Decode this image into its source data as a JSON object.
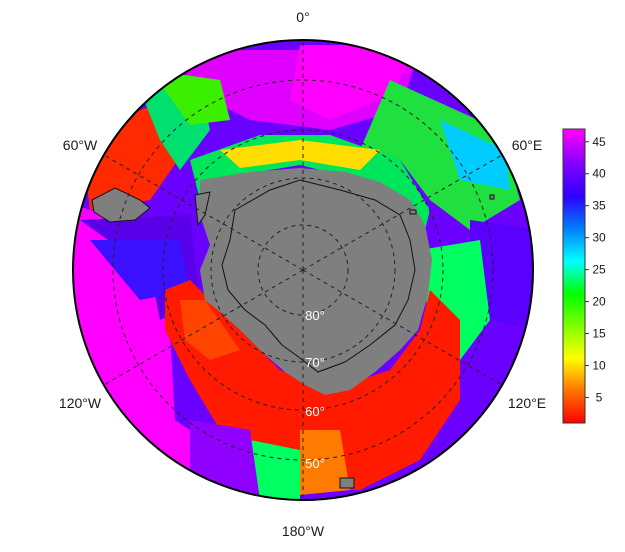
{
  "map": {
    "projection": "south-polar-stereographic",
    "lon_labels": [
      "0°",
      "60°E",
      "120°E",
      "180°W",
      "120°W",
      "60°W"
    ],
    "lat_labels": [
      "80°",
      "70°",
      "60°",
      "50°"
    ]
  },
  "colorbar": {
    "ticks": [
      5,
      10,
      15,
      20,
      25,
      30,
      35,
      40,
      45
    ],
    "range": [
      1,
      47
    ],
    "colors": [
      "#ff0000",
      "#ff7f00",
      "#ffff00",
      "#7fff00",
      "#00ff00",
      "#00ffff",
      "#0080ff",
      "#2e00ff",
      "#8000ff",
      "#ff00ff"
    ]
  },
  "colors": {
    "land": "#7f7f7f",
    "background": "#ffffff",
    "grid": "#222222"
  }
}
